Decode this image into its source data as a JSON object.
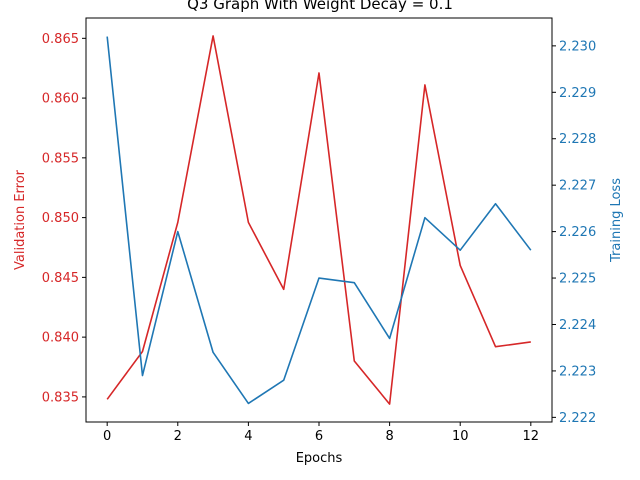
{
  "chart_data": {
    "type": "line",
    "title": "Q3 Graph With Weight Decay = 0.1",
    "xlabel": "Epochs",
    "x": [
      0,
      1,
      2,
      3,
      4,
      5,
      6,
      7,
      8,
      9,
      10,
      11,
      12
    ],
    "xlim": [
      -0.6,
      12.6
    ],
    "xticks": [
      "0",
      "2",
      "4",
      "6",
      "8",
      "10",
      "12"
    ],
    "xtick_values": [
      0,
      2,
      4,
      6,
      8,
      10,
      12
    ],
    "series": [
      {
        "name": "Validation Error",
        "axis": "left",
        "color": "#d62728",
        "values": [
          0.8348,
          0.8388,
          0.8496,
          0.8652,
          0.8496,
          0.844,
          0.8621,
          0.838,
          0.8344,
          0.8611,
          0.846,
          0.8392,
          0.8396
        ]
      },
      {
        "name": "Training Loss",
        "axis": "right",
        "color": "#1f77b4",
        "values": [
          2.2302,
          2.2229,
          2.226,
          2.2234,
          2.2223,
          2.2228,
          2.225,
          2.2249,
          2.2237,
          2.2263,
          2.2256,
          2.2266,
          2.2256
        ]
      }
    ],
    "y_left": {
      "label": "Validation Error",
      "color": "#d62728",
      "ylim": [
        0.8329,
        0.8667
      ],
      "ticks": [
        "0.835",
        "0.840",
        "0.845",
        "0.850",
        "0.855",
        "0.860",
        "0.865"
      ],
      "tick_values": [
        0.835,
        0.84,
        0.845,
        0.85,
        0.855,
        0.86,
        0.865
      ]
    },
    "y_right": {
      "label": "Training Loss",
      "color": "#1f77b4",
      "ylim": [
        2.2219,
        2.2306
      ],
      "ticks": [
        "2.222",
        "2.223",
        "2.224",
        "2.225",
        "2.226",
        "2.227",
        "2.228",
        "2.229",
        "2.230"
      ],
      "tick_values": [
        2.222,
        2.223,
        2.224,
        2.225,
        2.226,
        2.227,
        2.228,
        2.229,
        2.23
      ]
    },
    "grid": false,
    "legend": "none"
  }
}
